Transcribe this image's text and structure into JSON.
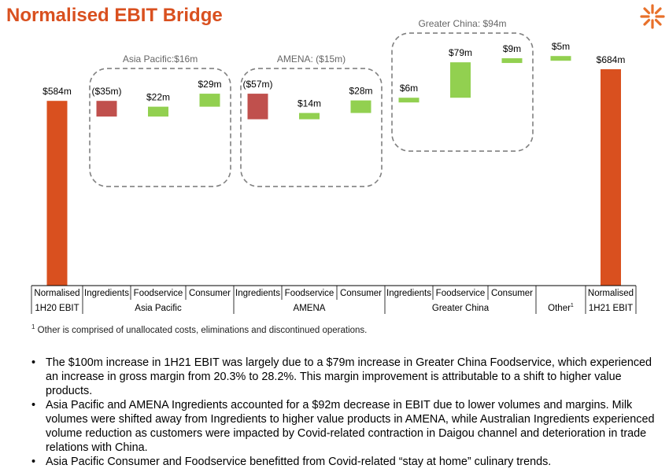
{
  "title": "Normalised EBIT Bridge",
  "logo_icon": "asterisk-burst-icon",
  "colors": {
    "accent": "#d9501f",
    "positive": "#92d050",
    "negative": "#c0504d",
    "total": "#d9501f"
  },
  "chart_data": {
    "type": "waterfall",
    "title": "Normalised EBIT Bridge",
    "unit": "$m",
    "bars": [
      {
        "category": "Normalised 1H20 EBIT",
        "kind": "total",
        "value": 584,
        "label": "$584m"
      },
      {
        "category": "Asia Pacific Ingredients",
        "kind": "delta",
        "value": -35,
        "label": "($35m)"
      },
      {
        "category": "Asia Pacific Foodservice",
        "kind": "delta",
        "value": 22,
        "label": "$22m"
      },
      {
        "category": "Asia Pacific Consumer",
        "kind": "delta",
        "value": 29,
        "label": "$29m"
      },
      {
        "category": "AMENA Ingredients",
        "kind": "delta",
        "value": -57,
        "label": "($57m)"
      },
      {
        "category": "AMENA Foodservice",
        "kind": "delta",
        "value": 14,
        "label": "$14m"
      },
      {
        "category": "AMENA Consumer",
        "kind": "delta",
        "value": 28,
        "label": "$28m"
      },
      {
        "category": "Greater China Ingredients",
        "kind": "delta",
        "value": 6,
        "label": "$6m"
      },
      {
        "category": "Greater China Foodservice",
        "kind": "delta",
        "value": 79,
        "label": "$79m"
      },
      {
        "category": "Greater China Consumer",
        "kind": "delta",
        "value": 9,
        "label": "$9m"
      },
      {
        "category": "Other",
        "kind": "delta",
        "value": 5,
        "label": "$5m"
      },
      {
        "category": "Normalised 1H21 EBIT",
        "kind": "total",
        "value": 684,
        "label": "$684m"
      }
    ],
    "groups": [
      {
        "name": "Asia Pacific",
        "label": "Asia Pacific:$16m",
        "total": 16,
        "bars": [
          1,
          2,
          3
        ]
      },
      {
        "name": "AMENA",
        "label": "AMENA: ($15m)",
        "total": -15,
        "bars": [
          4,
          5,
          6
        ]
      },
      {
        "name": "Greater China",
        "label": "Greater China: $94m",
        "total": 94,
        "bars": [
          7,
          8,
          9
        ]
      }
    ],
    "axis_row1": [
      "Normalised",
      "Ingredients",
      "Foodservice",
      "Consumer",
      "Ingredients",
      "Foodservice",
      "Consumer",
      "Ingredients",
      "Foodservice",
      "Consumer",
      "",
      "Normalised"
    ],
    "axis_row2": [
      {
        "label": "1H20 EBIT",
        "span": 1
      },
      {
        "label": "Asia Pacific",
        "span": 3
      },
      {
        "label": "AMENA",
        "span": 3
      },
      {
        "label": "Greater China",
        "span": 3
      },
      {
        "label": "Other",
        "sup": "1",
        "span": 1
      },
      {
        "label": "1H21 EBIT",
        "span": 1
      }
    ]
  },
  "footnote": {
    "marker": "1",
    "text": "Other is comprised of unallocated costs, eliminations and discontinued operations."
  },
  "bullets": [
    "The $100m increase in 1H21 EBIT was largely due to a $79m increase in Greater China Foodservice, which experienced an increase in gross margin from 20.3% to 28.2%. This margin improvement is attributable to a shift to higher value products.",
    "Asia Pacific and AMENA Ingredients accounted for a $92m decrease in EBIT due to lower volumes and margins. Milk volumes were shifted away from Ingredients to higher value products in AMENA, while Australian Ingredients experienced volume reduction as customers were impacted by Covid-related contraction in Daigou channel and deterioration in trade relations with China.",
    "Asia Pacific Consumer and Foodservice benefitted from Covid-related “stay at home” culinary trends."
  ]
}
